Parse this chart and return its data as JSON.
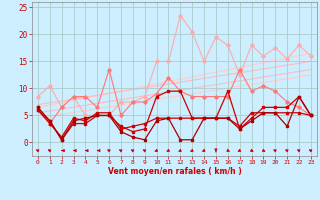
{
  "background_color": "#cceeff",
  "grid_color": "#aacccc",
  "xlabel": "Vent moyen/en rafales ( km/h )",
  "xlabel_color": "#cc0000",
  "tick_color": "#cc0000",
  "xlim": [
    -0.5,
    23.5
  ],
  "ylim": [
    -2.5,
    26
  ],
  "yticks": [
    0,
    5,
    10,
    15,
    20,
    25
  ],
  "xticks": [
    0,
    1,
    2,
    3,
    4,
    5,
    6,
    7,
    8,
    9,
    10,
    11,
    12,
    13,
    14,
    15,
    16,
    17,
    18,
    19,
    20,
    21,
    22,
    23
  ],
  "series": [
    {
      "x": [
        0,
        1,
        2,
        3,
        4,
        5,
        6,
        7,
        8,
        9,
        10,
        11,
        12,
        13,
        14,
        15,
        16,
        17,
        18,
        19,
        20,
        21,
        22,
        23
      ],
      "y": [
        8.5,
        10.5,
        6.5,
        8.5,
        5.0,
        5.0,
        5.0,
        7.5,
        7.5,
        8.5,
        15.0,
        15.0,
        23.5,
        20.5,
        15.0,
        19.5,
        18.0,
        12.5,
        18.0,
        16.0,
        17.5,
        15.5,
        18.0,
        16.0
      ],
      "color": "#ffaaaa",
      "lw": 0.8,
      "marker": "D",
      "ms": 1.8,
      "zorder": 2
    },
    {
      "x": [
        0,
        1,
        2,
        3,
        4,
        5,
        6,
        7,
        8,
        9,
        10,
        11,
        12,
        13,
        14,
        15,
        16,
        17,
        18,
        19,
        20,
        21,
        22,
        23
      ],
      "y": [
        6.5,
        3.5,
        6.5,
        8.5,
        8.5,
        6.5,
        13.5,
        5.0,
        7.5,
        7.5,
        9.0,
        12.0,
        9.5,
        8.5,
        8.5,
        8.5,
        8.5,
        13.5,
        9.5,
        10.5,
        9.5,
        7.5,
        6.5,
        5.0
      ],
      "color": "#ff7777",
      "lw": 0.8,
      "marker": "D",
      "ms": 1.8,
      "zorder": 2
    },
    {
      "x": [
        0,
        1,
        2,
        3,
        4,
        5,
        6,
        7,
        8,
        9,
        10,
        11,
        12,
        13,
        14,
        15,
        16,
        17,
        18,
        19,
        20,
        21,
        22,
        23
      ],
      "y": [
        6.0,
        4.0,
        0.5,
        3.5,
        3.5,
        5.0,
        5.0,
        3.0,
        2.0,
        2.5,
        8.5,
        9.5,
        9.5,
        4.5,
        4.5,
        4.5,
        9.5,
        2.5,
        4.5,
        6.5,
        6.5,
        6.5,
        8.5,
        5.0
      ],
      "color": "#cc0000",
      "lw": 0.9,
      "marker": "s",
      "ms": 1.5,
      "zorder": 3
    },
    {
      "x": [
        0,
        1,
        2,
        3,
        4,
        5,
        6,
        7,
        8,
        9,
        10,
        11,
        12,
        13,
        14,
        15,
        16,
        17,
        18,
        19,
        20,
        21,
        22,
        23
      ],
      "y": [
        6.0,
        3.5,
        1.0,
        4.5,
        4.0,
        5.5,
        5.5,
        2.5,
        3.0,
        3.5,
        4.5,
        4.5,
        4.5,
        4.5,
        4.5,
        4.5,
        4.5,
        3.0,
        5.5,
        5.5,
        5.5,
        5.5,
        5.5,
        5.0
      ],
      "color": "#cc0000",
      "lw": 0.9,
      "marker": "s",
      "ms": 1.5,
      "zorder": 3
    },
    {
      "x": [
        0,
        1,
        2,
        3,
        4,
        5,
        6,
        7,
        8,
        9,
        10,
        11,
        12,
        13,
        14,
        15,
        16,
        17,
        18,
        19,
        20,
        21,
        22,
        23
      ],
      "y": [
        6.5,
        4.0,
        0.5,
        4.0,
        4.5,
        5.0,
        5.0,
        2.0,
        1.0,
        0.5,
        4.0,
        4.5,
        0.5,
        0.5,
        4.5,
        4.5,
        4.5,
        2.5,
        4.0,
        5.5,
        5.5,
        3.0,
        8.5,
        5.0
      ],
      "color": "#aa0000",
      "lw": 0.9,
      "marker": "s",
      "ms": 1.5,
      "zorder": 3
    },
    {
      "x": [
        0,
        23
      ],
      "y": [
        6.5,
        16.5
      ],
      "color": "#ffcccc",
      "lw": 0.9,
      "marker": null,
      "ms": 0,
      "zorder": 1,
      "linestyle": "-"
    },
    {
      "x": [
        0,
        23
      ],
      "y": [
        7.0,
        15.0
      ],
      "color": "#ffbbbb",
      "lw": 0.8,
      "marker": null,
      "ms": 0,
      "zorder": 1,
      "linestyle": "-"
    },
    {
      "x": [
        0,
        23
      ],
      "y": [
        5.5,
        13.5
      ],
      "color": "#ffbbbb",
      "lw": 0.8,
      "marker": null,
      "ms": 0,
      "zorder": 1,
      "linestyle": "-"
    },
    {
      "x": [
        0,
        23
      ],
      "y": [
        4.5,
        12.5
      ],
      "color": "#ffcccc",
      "lw": 0.8,
      "marker": null,
      "ms": 0,
      "zorder": 1,
      "linestyle": "-"
    }
  ],
  "wind_arrows": {
    "x": [
      0,
      1,
      2,
      3,
      4,
      5,
      6,
      7,
      8,
      9,
      10,
      11,
      12,
      13,
      14,
      15,
      16,
      17,
      18,
      19,
      20,
      21,
      22,
      23
    ],
    "angles": [
      225,
      225,
      270,
      270,
      270,
      270,
      225,
      225,
      225,
      225,
      315,
      315,
      315,
      315,
      315,
      0,
      45,
      315,
      45,
      45,
      225,
      225,
      225,
      225
    ]
  }
}
